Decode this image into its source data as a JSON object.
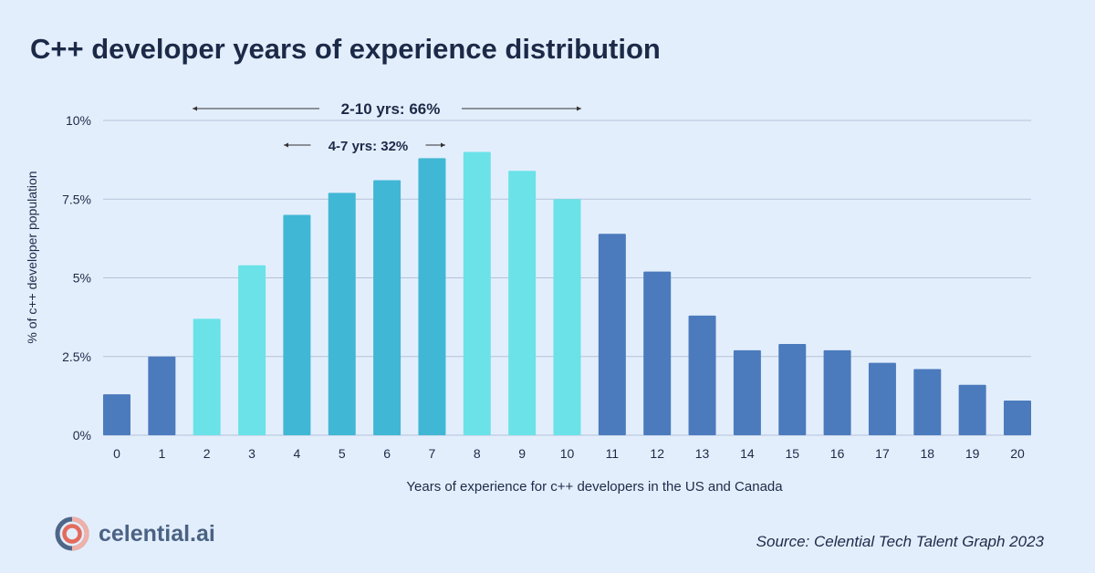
{
  "chart_data": {
    "type": "bar",
    "title": "C++ developer years of experience distribution",
    "xlabel": "Years of experience for c++ developers in the US and Canada",
    "ylabel": "% of c++ developer population",
    "categories": [
      "0",
      "1",
      "2",
      "3",
      "4",
      "5",
      "6",
      "7",
      "8",
      "9",
      "10",
      "11",
      "12",
      "13",
      "14",
      "15",
      "16",
      "17",
      "18",
      "19",
      "20"
    ],
    "values": [
      1.3,
      2.5,
      3.7,
      5.4,
      7.0,
      7.7,
      8.1,
      8.8,
      9.0,
      8.4,
      7.5,
      6.4,
      5.2,
      3.8,
      2.7,
      2.9,
      2.7,
      2.3,
      2.1,
      1.6,
      1.1
    ],
    "ylim": [
      0,
      10
    ],
    "yticks": [
      0,
      2.5,
      5,
      7.5,
      10
    ],
    "ytick_labels": [
      "0%",
      "2.5%",
      "5%",
      "7.5%",
      "10%"
    ],
    "grid": true,
    "colors": {
      "default": "#4b7bbd",
      "range_2_10": "#6ae2e8",
      "range_4_7": "#40b7d4"
    },
    "annotations": [
      {
        "text": "2-10 yrs: 66%",
        "from": 2,
        "to": 10
      },
      {
        "text": "4-7 yrs: 32%",
        "from": 4,
        "to": 7
      }
    ]
  },
  "brand": {
    "name": "celential.ai"
  },
  "source": "Source: Celential Tech Talent Graph 2023"
}
